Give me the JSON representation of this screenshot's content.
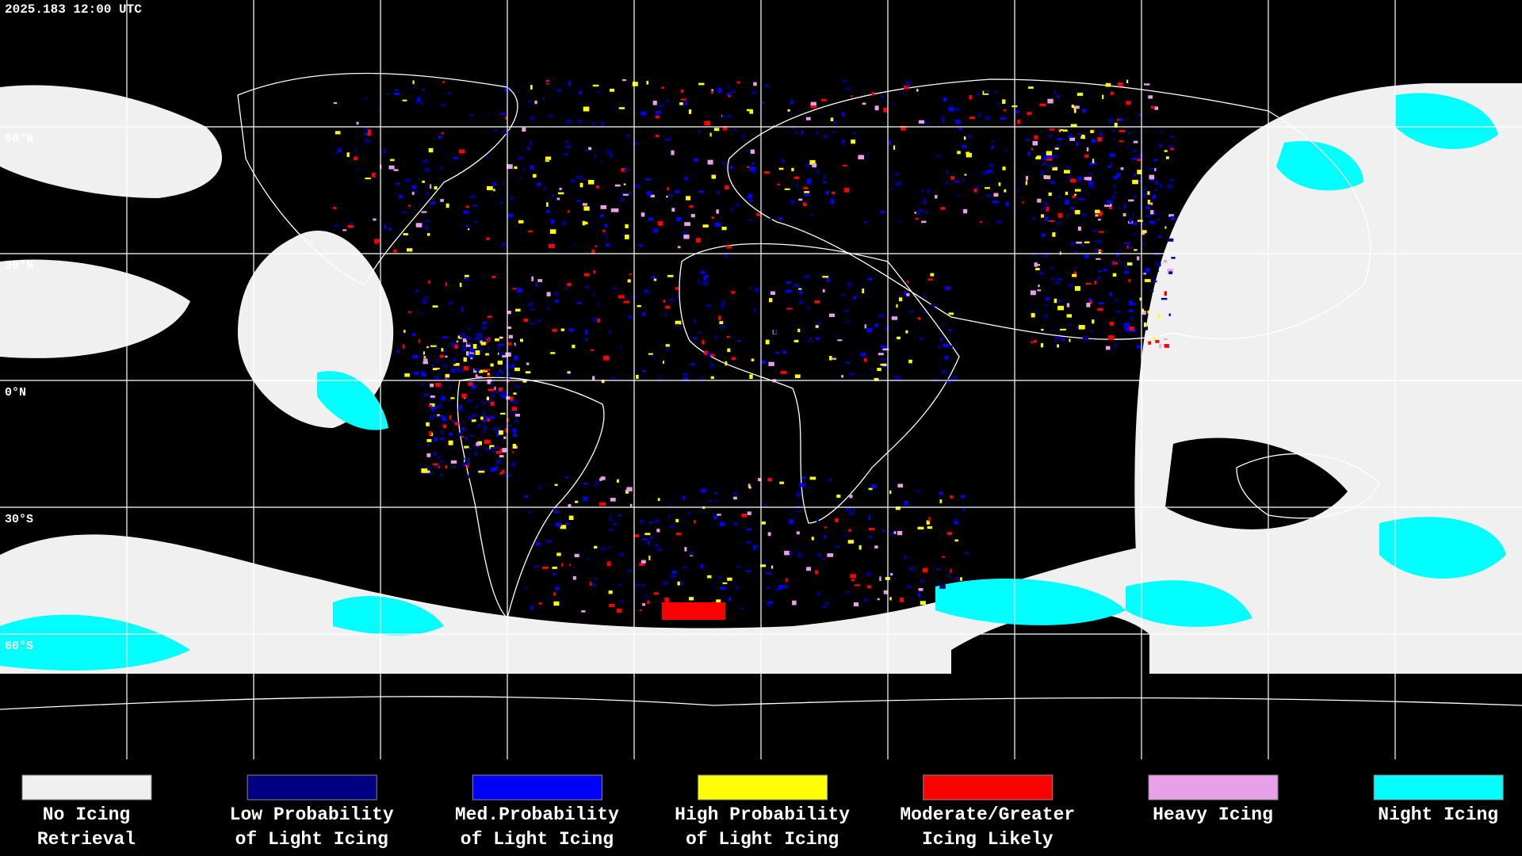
{
  "header": {
    "timestamp": "2025.183 12:00 UTC"
  },
  "map": {
    "latitude_labels": [
      "60°N",
      "30°N",
      "0°N",
      "30°S",
      "60°S"
    ]
  },
  "legend": {
    "items": [
      {
        "color": "#f0f0f0",
        "lines": [
          "No Icing",
          "Retrieval"
        ]
      },
      {
        "color": "#000080",
        "lines": [
          "Low Probability",
          "of Light Icing"
        ]
      },
      {
        "color": "#0000ff",
        "lines": [
          "Med.Probability",
          "of Light Icing"
        ]
      },
      {
        "color": "#ffff00",
        "lines": [
          "High Probability",
          "of Light Icing"
        ]
      },
      {
        "color": "#ff0000",
        "lines": [
          "Moderate/Greater",
          "Icing Likely"
        ]
      },
      {
        "color": "#e8a0e8",
        "lines": [
          "Heavy Icing"
        ]
      },
      {
        "color": "#00ffff",
        "lines": [
          "Night Icing"
        ]
      }
    ]
  }
}
